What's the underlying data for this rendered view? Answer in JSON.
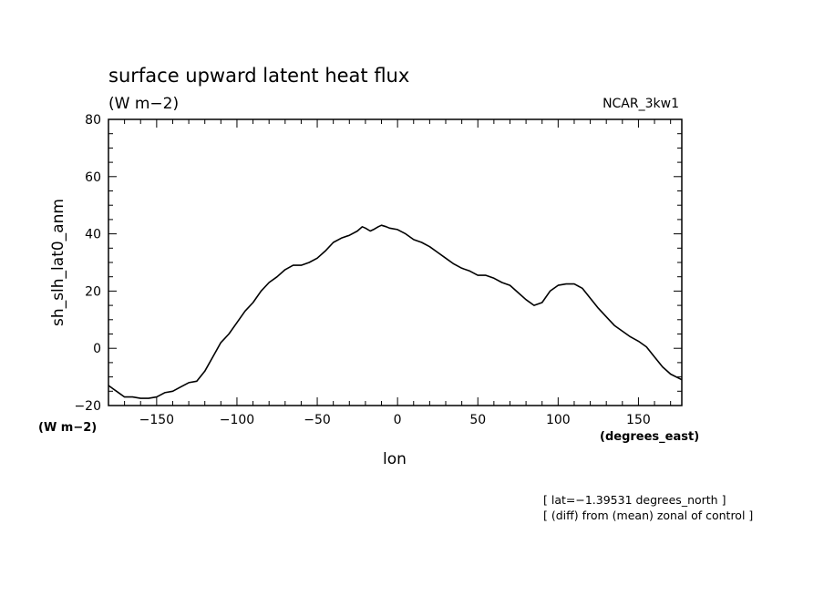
{
  "chart_data": {
    "type": "line",
    "title": "surface upward latent heat flux",
    "subtitle": "(W m−2)",
    "source_label": "NCAR_3kw1",
    "xlabel": "lon",
    "x_unit": "(degrees_east)",
    "ylabel": "sh_slh_lat0_anm",
    "y_unit": "(W m−2)",
    "xlim": [
      -180,
      177
    ],
    "ylim": [
      -20,
      80
    ],
    "x_ticks": [
      -150,
      -100,
      -50,
      0,
      50,
      100,
      150
    ],
    "x_tick_labels": [
      "−150",
      "−100",
      "−50",
      "0",
      "50",
      "100",
      "150"
    ],
    "y_ticks": [
      -20,
      0,
      20,
      40,
      60,
      80
    ],
    "y_tick_labels": [
      "−20",
      "0",
      "20",
      "40",
      "60",
      "80"
    ],
    "grid": false,
    "footnotes": [
      "[ lat=−1.39531 degrees_north ]",
      "[ (diff) from (mean) zonal of control ]"
    ],
    "series": [
      {
        "x": [
          -180,
          -175,
          -170,
          -165,
          -160,
          -155,
          -150,
          -145,
          -140,
          -135,
          -130,
          -125,
          -120,
          -115,
          -110,
          -105,
          -100,
          -95,
          -90,
          -85,
          -80,
          -75,
          -70,
          -65,
          -60,
          -55,
          -50,
          -45,
          -40,
          -35,
          -30,
          -25,
          -22,
          -20,
          -17,
          -15,
          -12,
          -10,
          -7,
          -5,
          0,
          5,
          10,
          15,
          20,
          25,
          30,
          35,
          40,
          45,
          50,
          55,
          60,
          65,
          70,
          75,
          80,
          85,
          90,
          95,
          100,
          105,
          110,
          115,
          120,
          125,
          130,
          135,
          140,
          145,
          150,
          155,
          160,
          165,
          170,
          177
        ],
        "y": [
          -13,
          -15,
          -17,
          -17,
          -17.5,
          -17.5,
          -17,
          -15.5,
          -15,
          -13.5,
          -12,
          -11.5,
          -8,
          -3,
          2,
          5,
          9,
          13,
          16,
          20,
          23,
          25,
          27.5,
          29,
          29,
          30,
          31.5,
          34,
          37,
          38.5,
          39.5,
          41,
          42.5,
          42,
          41,
          41.5,
          42.5,
          43,
          42.5,
          42,
          41.5,
          40,
          38,
          37,
          35.5,
          33.5,
          31.5,
          29.5,
          28,
          27,
          25.5,
          25.5,
          24.5,
          23,
          22,
          19.5,
          17,
          15,
          16,
          20,
          22,
          22.5,
          22.5,
          21,
          17.5,
          14,
          11,
          8,
          6,
          4,
          2.5,
          0.5,
          -3,
          -6.5,
          -9,
          -11
        ]
      }
    ]
  }
}
